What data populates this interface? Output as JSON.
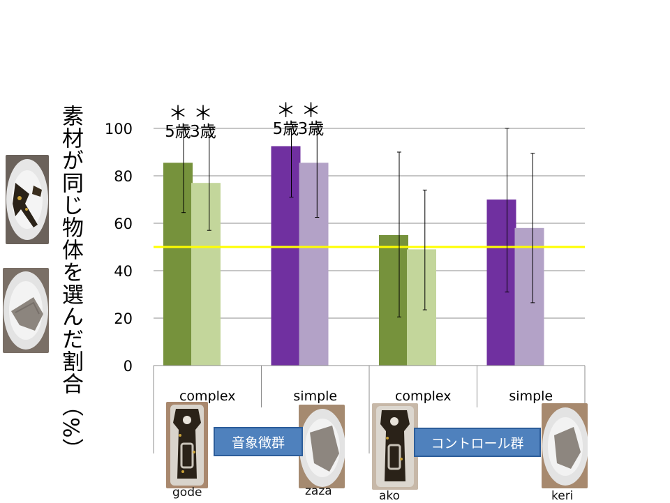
{
  "chart_data": {
    "type": "bar",
    "ylabel": "素材が同じ物体を選んだ割合（%）",
    "ylim": [
      0,
      100
    ],
    "yticks": [
      0,
      20,
      40,
      60,
      80,
      100
    ],
    "categories": [
      "complex",
      "simple",
      "complex",
      "simple"
    ],
    "bars": [
      {
        "category": 0,
        "age": "5歳",
        "value": 85.5,
        "err_low": 64.5,
        "err_high": 100,
        "color": "#76923c",
        "star": "＊"
      },
      {
        "category": 0,
        "age": "3歳",
        "value": 77,
        "err_low": 57,
        "err_high": 97,
        "color": "#c3d69b",
        "star": "＊"
      },
      {
        "category": 1,
        "age": "5歳",
        "value": 92.5,
        "err_low": 71,
        "err_high": 100,
        "color": "#7030a0",
        "star": "＊"
      },
      {
        "category": 1,
        "age": "3歳",
        "value": 85.5,
        "err_low": 62.5,
        "err_high": 100,
        "color": "#b3a2c7",
        "star": "＊"
      },
      {
        "category": 2,
        "age": "",
        "value": 55,
        "err_low": 20.5,
        "err_high": 90,
        "color": "#76923c",
        "star": ""
      },
      {
        "category": 2,
        "age": "",
        "value": 49,
        "err_low": 23.5,
        "err_high": 74,
        "color": "#c3d69b",
        "star": ""
      },
      {
        "category": 3,
        "age": "",
        "value": 70,
        "err_low": 31,
        "err_high": 100,
        "color": "#7030a0",
        "star": ""
      },
      {
        "category": 3,
        "age": "",
        "value": 58,
        "err_low": 26.5,
        "err_high": 89.5,
        "color": "#b3a2c7",
        "star": ""
      }
    ],
    "reference_line": {
      "value": 50,
      "color": "#ffff00"
    },
    "groups": [
      {
        "label": "音象徴群"
      },
      {
        "label": "コントロール群"
      }
    ],
    "objects": [
      "gode",
      "zaza",
      "ako",
      "keri"
    ]
  }
}
